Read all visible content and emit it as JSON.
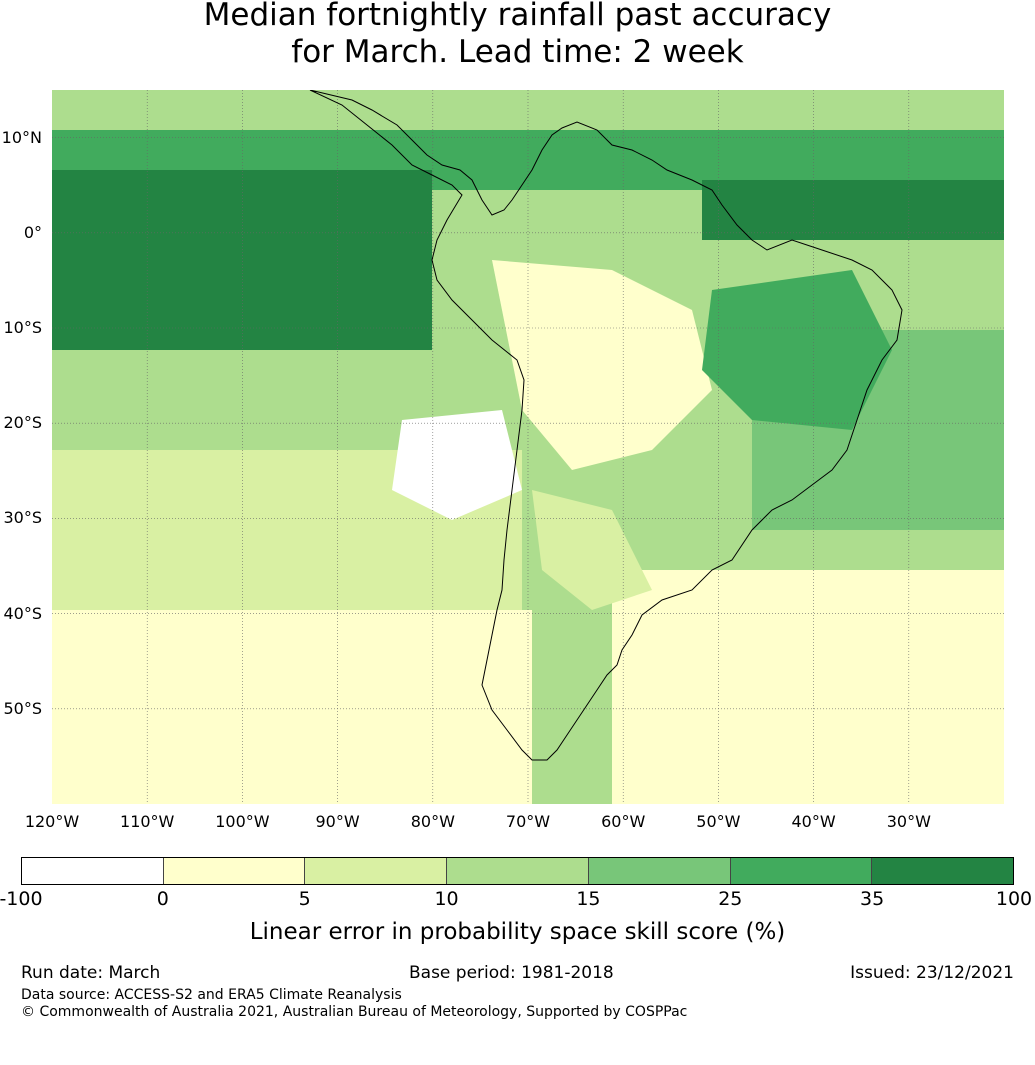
{
  "title_line1": "Median fortnightly rainfall past accuracy",
  "title_line2": "for March. Lead time: 2 week",
  "map": {
    "lon_range": [
      -120,
      -20
    ],
    "lat_range": [
      -60,
      15
    ],
    "lat_labels": [
      {
        "lat": 10,
        "text": "10°N"
      },
      {
        "lat": 0,
        "text": "0°"
      },
      {
        "lat": -10,
        "text": "10°S"
      },
      {
        "lat": -20,
        "text": "20°S"
      },
      {
        "lat": -30,
        "text": "30°S"
      },
      {
        "lat": -40,
        "text": "40°S"
      },
      {
        "lat": -50,
        "text": "50°S"
      }
    ],
    "lon_labels": [
      {
        "lon": -120,
        "text": "120°W"
      },
      {
        "lon": -110,
        "text": "110°W"
      },
      {
        "lon": -100,
        "text": "100°W"
      },
      {
        "lon": -90,
        "text": "90°W"
      },
      {
        "lon": -80,
        "text": "80°W"
      },
      {
        "lon": -70,
        "text": "70°W"
      },
      {
        "lon": -60,
        "text": "60°W"
      },
      {
        "lon": -50,
        "text": "50°W"
      },
      {
        "lon": -40,
        "text": "40°W"
      },
      {
        "lon": -30,
        "text": "30°W"
      }
    ]
  },
  "colorbar": {
    "ticks": [
      "-100",
      "0",
      "5",
      "10",
      "15",
      "25",
      "35",
      "100"
    ],
    "colors": [
      "#ffffff",
      "#ffffcc",
      "#d9f0a3",
      "#addd8e",
      "#78c679",
      "#41ab5d",
      "#238443"
    ],
    "label": "Linear error in probability space skill score (%)"
  },
  "footer": {
    "run_date": "Run date: March",
    "base_period": "Base period: 1981-2018",
    "issued": "Issued: 23/12/2021",
    "data_source": "Data source: ACCESS-S2 and ERA5 Climate Reanalysis",
    "copyright": "© Commonwealth of Australia 2021, Australian Bureau of Meteorology, Supported by COSPPac"
  }
}
